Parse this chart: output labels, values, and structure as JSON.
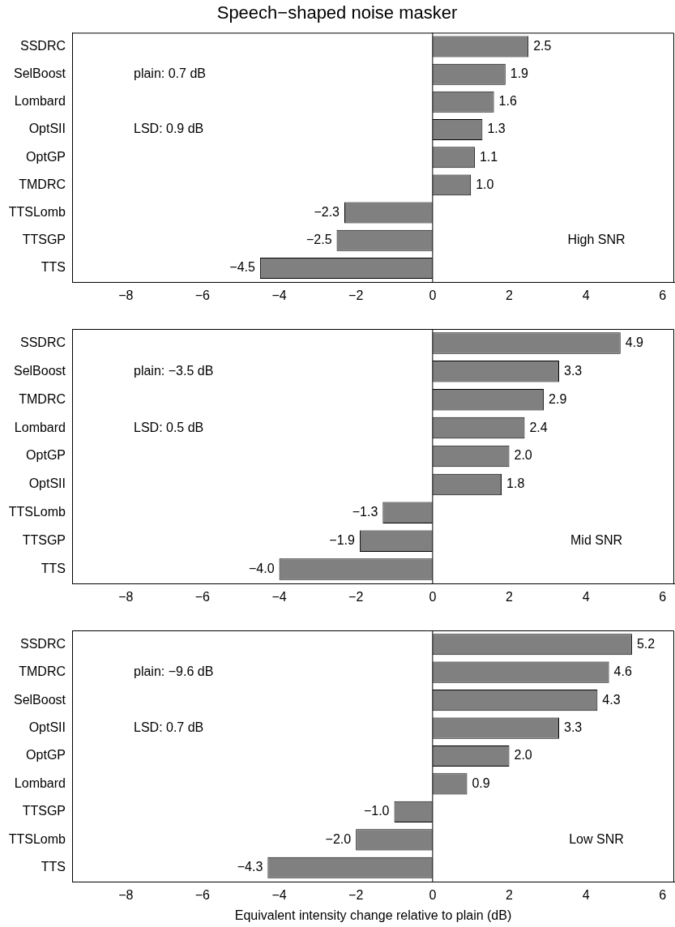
{
  "chart_data": [
    {
      "type": "bar",
      "orientation": "horizontal",
      "title": "Speech−shaped noise masker",
      "categories": [
        "SSDRC",
        "SelBoost",
        "Lombard",
        "OptSII",
        "OptGP",
        "TMDRC",
        "TTSLomb",
        "TTSGP",
        "TTS"
      ],
      "values": [
        2.5,
        1.9,
        1.6,
        1.3,
        1.1,
        1.0,
        -2.3,
        -2.5,
        -4.5
      ],
      "value_labels": [
        "2.5",
        "1.9",
        "1.6",
        "1.3",
        "1.1",
        "1.0",
        "−2.3",
        "−2.5",
        "−4.5"
      ],
      "color": "#808080",
      "xlim": [
        -9.4,
        6.3
      ],
      "xticks": [
        {
          "value": -8,
          "label": "−8"
        },
        {
          "value": -6,
          "label": "−6"
        },
        {
          "value": -4,
          "label": "−4"
        },
        {
          "value": -2,
          "label": "−2"
        },
        0,
        2,
        4,
        6
      ],
      "ref_lines": [
        {
          "axis": "x",
          "value": 0
        }
      ],
      "annotations": [
        "plain: 0.7 dB",
        "LSD: 0.9 dB",
        "High SNR"
      ],
      "grid": false,
      "legend": false
    },
    {
      "type": "bar",
      "orientation": "horizontal",
      "categories": [
        "SSDRC",
        "SelBoost",
        "TMDRC",
        "Lombard",
        "OptGP",
        "OptSII",
        "TTSLomb",
        "TTSGP",
        "TTS"
      ],
      "values": [
        4.9,
        3.3,
        2.9,
        2.4,
        2.0,
        1.8,
        -1.3,
        -1.9,
        -4.0
      ],
      "value_labels": [
        "4.9",
        "3.3",
        "2.9",
        "2.4",
        "2.0",
        "1.8",
        "−1.3",
        "−1.9",
        "−4.0"
      ],
      "color": "#808080",
      "xlim": [
        -9.4,
        6.3
      ],
      "xticks": [
        {
          "value": -8,
          "label": "−8"
        },
        {
          "value": -6,
          "label": "−6"
        },
        {
          "value": -4,
          "label": "−4"
        },
        {
          "value": -2,
          "label": "−2"
        },
        0,
        2,
        4,
        6
      ],
      "ref_lines": [
        {
          "axis": "x",
          "value": 0
        }
      ],
      "annotations": [
        "plain: −3.5 dB",
        "LSD: 0.5 dB",
        "Mid SNR"
      ],
      "grid": false,
      "legend": false
    },
    {
      "type": "bar",
      "orientation": "horizontal",
      "xlabel": "Equivalent intensity change relative to plain (dB)",
      "categories": [
        "SSDRC",
        "TMDRC",
        "SelBoost",
        "OptSII",
        "OptGP",
        "Lombard",
        "TTSGP",
        "TTSLomb",
        "TTS"
      ],
      "values": [
        5.2,
        4.6,
        4.3,
        3.3,
        2.0,
        0.9,
        -1.0,
        -2.0,
        -4.3
      ],
      "value_labels": [
        "5.2",
        "4.6",
        "4.3",
        "3.3",
        "2.0",
        "0.9",
        "−1.0",
        "−2.0",
        "−4.3"
      ],
      "color": "#808080",
      "xlim": [
        -9.4,
        6.3
      ],
      "xticks": [
        {
          "value": -8,
          "label": "−8"
        },
        {
          "value": -6,
          "label": "−6"
        },
        {
          "value": -4,
          "label": "−4"
        },
        {
          "value": -2,
          "label": "−2"
        },
        0,
        2,
        4,
        6
      ],
      "ref_lines": [
        {
          "axis": "x",
          "value": 0
        }
      ],
      "annotations": [
        "plain: −9.6 dB",
        "LSD: 0.7 dB",
        "Low SNR"
      ],
      "grid": false,
      "legend": false
    }
  ]
}
